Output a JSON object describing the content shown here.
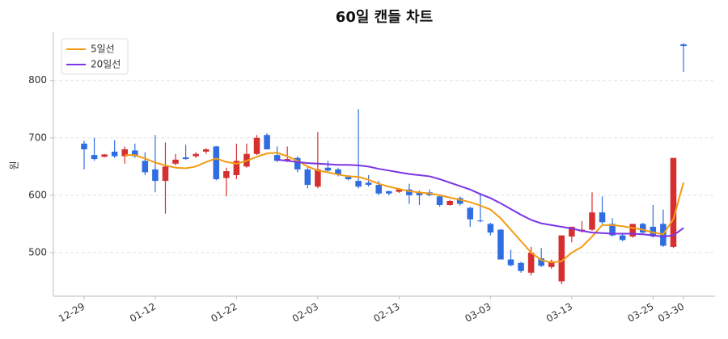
{
  "chart_data": {
    "type": "candlestick",
    "title": "60일 캔들 차트",
    "y_label": "원",
    "categories": [
      "12-29",
      null,
      null,
      null,
      null,
      null,
      null,
      "01-12",
      null,
      null,
      null,
      null,
      null,
      null,
      null,
      "01-22",
      null,
      null,
      null,
      null,
      null,
      null,
      null,
      "02-03",
      null,
      null,
      null,
      null,
      null,
      null,
      null,
      "02-13",
      null,
      null,
      null,
      null,
      null,
      null,
      null,
      null,
      "03-03",
      null,
      null,
      null,
      null,
      null,
      null,
      null,
      "03-13",
      null,
      null,
      null,
      null,
      null,
      null,
      null,
      "03-25",
      null,
      null,
      "03-30"
    ],
    "open": [
      690,
      670,
      667,
      676,
      668,
      678,
      660,
      645,
      625,
      655,
      666,
      668,
      676,
      685,
      630,
      635,
      650,
      672,
      705,
      670,
      660,
      665,
      645,
      615,
      648,
      645,
      632,
      625,
      622,
      618,
      607,
      606,
      610,
      605,
      605,
      598,
      583,
      595,
      578,
      556,
      550,
      540,
      488,
      482,
      465,
      490,
      475,
      450,
      528,
      537,
      540,
      570,
      550,
      530,
      528,
      550,
      545,
      550,
      510,
      863
    ],
    "high": [
      695,
      700,
      672,
      696,
      685,
      690,
      675,
      705,
      692,
      672,
      688,
      675,
      682,
      686,
      648,
      690,
      690,
      705,
      708,
      685,
      685,
      668,
      650,
      710,
      660,
      648,
      635,
      750,
      635,
      625,
      608,
      612,
      620,
      608,
      610,
      600,
      592,
      598,
      580,
      604,
      552,
      541,
      505,
      484,
      510,
      508,
      488,
      530,
      545,
      555,
      605,
      598,
      560,
      532,
      550,
      552,
      583,
      575,
      665,
      865
    ],
    "low": [
      645,
      660,
      666,
      665,
      655,
      665,
      635,
      605,
      568,
      652,
      662,
      665,
      672,
      626,
      598,
      628,
      648,
      670,
      680,
      658,
      658,
      640,
      612,
      612,
      640,
      633,
      626,
      612,
      615,
      600,
      600,
      604,
      585,
      583,
      598,
      580,
      582,
      582,
      545,
      553,
      530,
      488,
      476,
      465,
      460,
      475,
      472,
      445,
      518,
      535,
      538,
      550,
      528,
      520,
      526,
      533,
      526,
      510,
      508,
      815
    ],
    "close": [
      680,
      663,
      671,
      668,
      680,
      668,
      640,
      625,
      650,
      662,
      663,
      672,
      680,
      628,
      642,
      660,
      672,
      700,
      680,
      660,
      663,
      645,
      618,
      645,
      643,
      636,
      628,
      615,
      618,
      603,
      603,
      610,
      600,
      600,
      600,
      583,
      590,
      585,
      558,
      555,
      535,
      488,
      478,
      468,
      500,
      477,
      485,
      530,
      545,
      540,
      570,
      553,
      530,
      522,
      550,
      535,
      528,
      512,
      665,
      860
    ],
    "up_color": "#d62f2f",
    "down_color": "#2f6de1",
    "series": [
      {
        "name": "5일선",
        "color": "#f39c12",
        "values": [
          null,
          null,
          null,
          null,
          670,
          670,
          664,
          657,
          652,
          648,
          647,
          650,
          658,
          664,
          658,
          655,
          660,
          667,
          673,
          674,
          668,
          660,
          650,
          643,
          640,
          636,
          633,
          632,
          627,
          620,
          615,
          611,
          607,
          605,
          603,
          600,
          596,
          592,
          588,
          582,
          575,
          560,
          540,
          520,
          500,
          487,
          483,
          485,
          500,
          510,
          528,
          548,
          548,
          546,
          543,
          540,
          535,
          532,
          558,
          622
        ]
      },
      {
        "name": "20일선",
        "color": "#7b35e6",
        "values": [
          null,
          null,
          null,
          null,
          null,
          null,
          null,
          null,
          null,
          null,
          null,
          null,
          null,
          null,
          null,
          null,
          null,
          null,
          null,
          662,
          660,
          658,
          656,
          655,
          654,
          653,
          653,
          652,
          650,
          646,
          643,
          640,
          637,
          635,
          633,
          628,
          622,
          616,
          610,
          602,
          595,
          586,
          576,
          566,
          557,
          551,
          548,
          545,
          542,
          538,
          535,
          534,
          533,
          533,
          533,
          532,
          530,
          528,
          530,
          543
        ]
      }
    ],
    "ylim": [
      424,
      884
    ],
    "yticks": [
      500,
      600,
      700,
      800
    ],
    "grid": true,
    "legend": "upper left"
  }
}
